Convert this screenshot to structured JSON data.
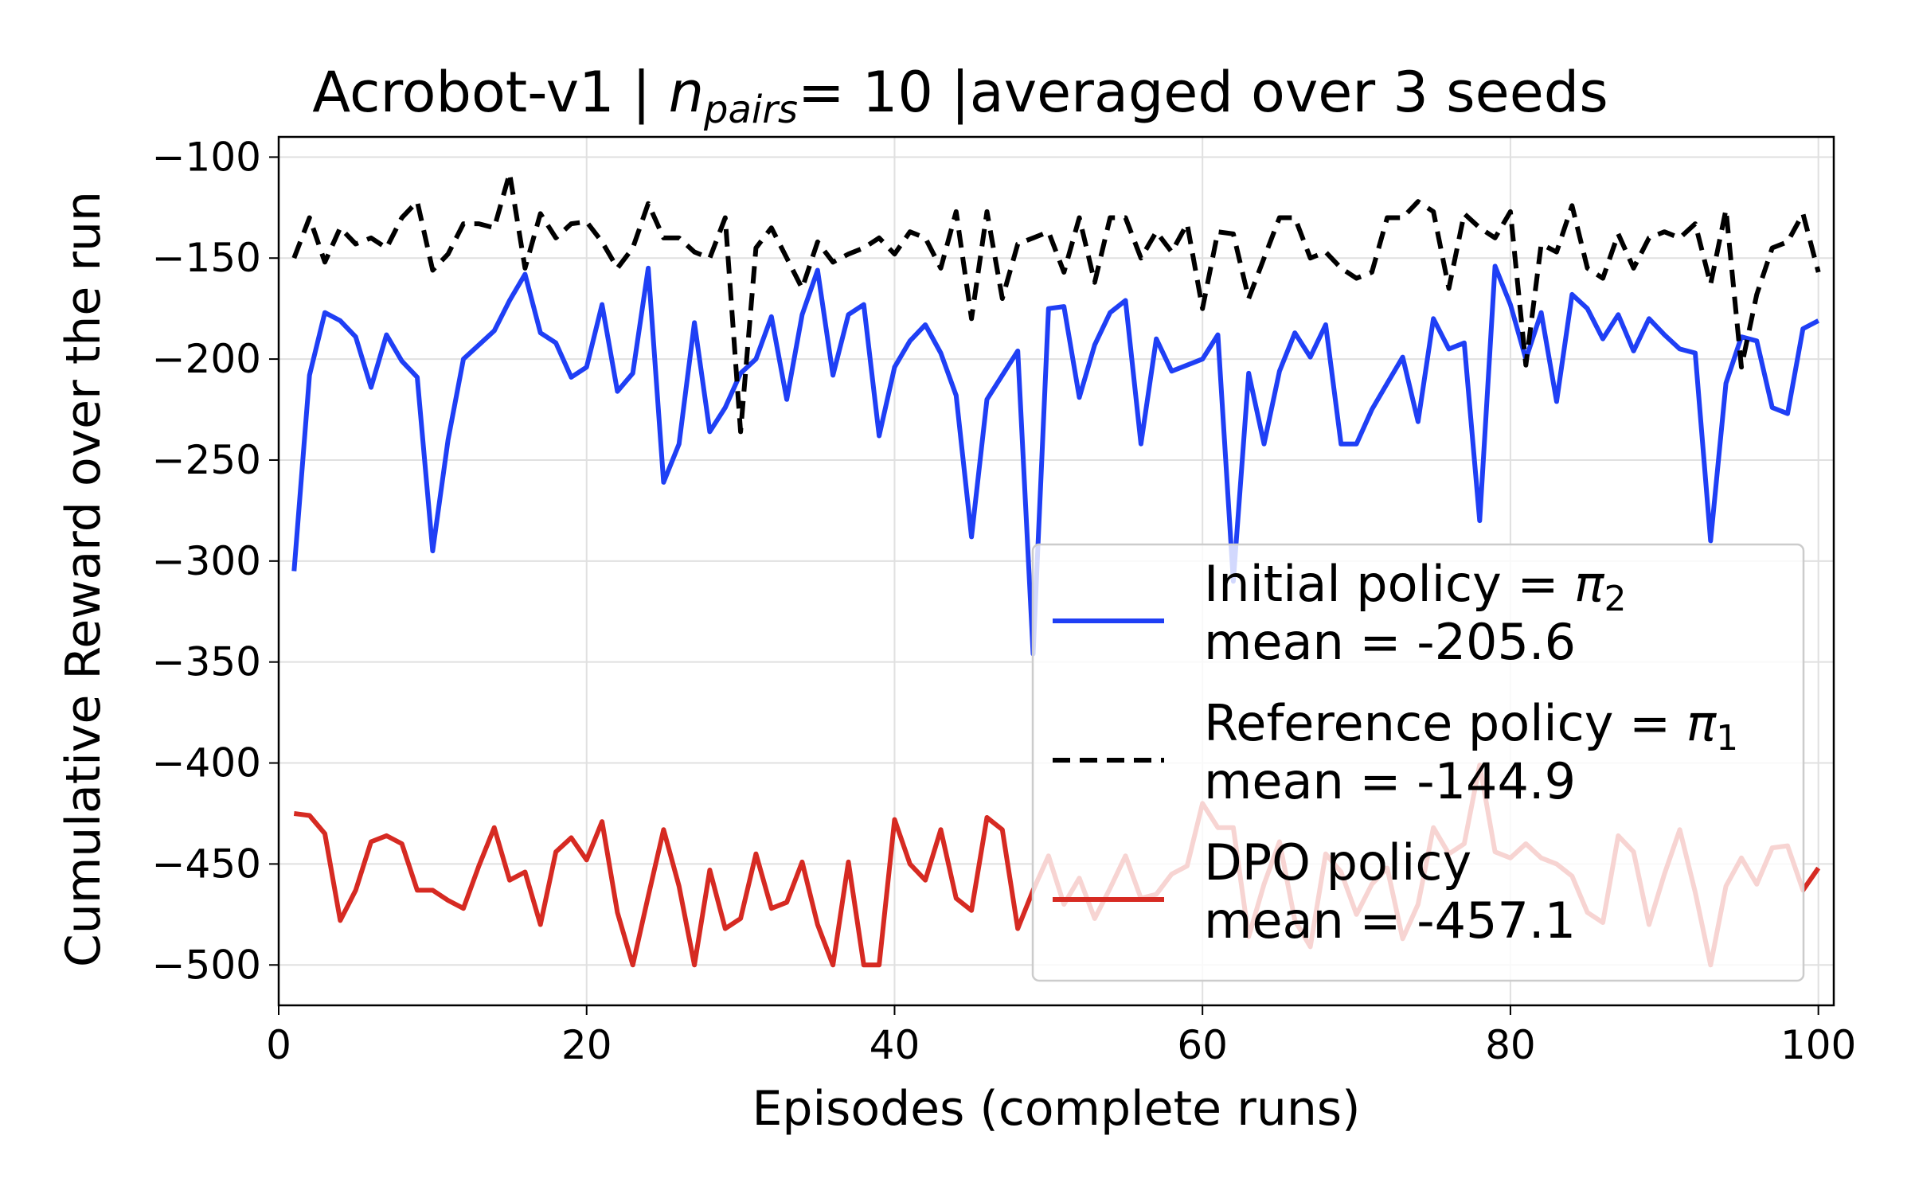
{
  "chart_data": {
    "type": "line",
    "title": {
      "prefix": "Acrobot-v1 | ",
      "var": "n",
      "var_sub": "pairs",
      "suffix": "= 10 |averaged over 3 seeds"
    },
    "xlabel": "Episodes (complete runs)",
    "ylabel": "Cumulative Reward over the run",
    "xlim": [
      0,
      101
    ],
    "ylim": [
      -520,
      -90
    ],
    "xticks": [
      0,
      20,
      40,
      60,
      80,
      100
    ],
    "yticks": [
      -100,
      -150,
      -200,
      -250,
      -300,
      -350,
      -400,
      -450,
      -500
    ],
    "xtick_labels": [
      "0",
      "20",
      "40",
      "60",
      "80",
      "100"
    ],
    "ytick_labels": [
      "−100",
      "−150",
      "−200",
      "−250",
      "−300",
      "−350",
      "−400",
      "−450",
      "−500"
    ],
    "grid": true,
    "legend_position": "lower-right",
    "x": [
      1,
      2,
      3,
      4,
      5,
      6,
      7,
      8,
      9,
      10,
      11,
      12,
      13,
      14,
      15,
      16,
      17,
      18,
      19,
      20,
      21,
      22,
      23,
      24,
      25,
      26,
      27,
      28,
      29,
      30,
      31,
      32,
      33,
      34,
      35,
      36,
      37,
      38,
      39,
      40,
      41,
      42,
      43,
      44,
      45,
      46,
      47,
      48,
      49,
      50,
      51,
      52,
      53,
      54,
      55,
      56,
      57,
      58,
      59,
      60,
      61,
      62,
      63,
      64,
      65,
      66,
      67,
      68,
      69,
      70,
      71,
      72,
      73,
      74,
      75,
      76,
      77,
      78,
      79,
      80,
      81,
      82,
      83,
      84,
      85,
      86,
      87,
      88,
      89,
      90,
      91,
      92,
      93,
      94,
      95,
      96,
      97,
      98,
      99,
      100
    ],
    "series": [
      {
        "key": "initial",
        "legend_line1": "Initial policy = ",
        "legend_symbol": "π",
        "legend_sub": "2",
        "legend_line2": " mean = -205.6",
        "color": "#1f3ff5",
        "dash": "",
        "values": [
          -305,
          -208,
          -177,
          -181,
          -189,
          -214,
          -188,
          -201,
          -209,
          -295,
          -240,
          -200,
          -193,
          -186,
          -171,
          -158,
          -187,
          -192,
          -209,
          -204,
          -173,
          -216,
          -207,
          -155,
          -261,
          -242,
          -182,
          -236,
          -224,
          -207,
          -200,
          -179,
          -220,
          -178,
          -156,
          -208,
          -178,
          -173,
          -238,
          -204,
          -191,
          -183,
          -197,
          -218,
          -288,
          -220,
          -208,
          -196,
          -346,
          -175,
          -174,
          -219,
          -193,
          -177,
          -171,
          -242,
          -190,
          -206,
          -203,
          -200,
          -188,
          -310,
          -207,
          -242,
          -206,
          -187,
          -199,
          -183,
          -242,
          -242,
          -225,
          -212,
          -199,
          -231,
          -180,
          -195,
          -192,
          -280,
          -154,
          -173,
          -200,
          -177,
          -221,
          -168,
          -175,
          -190,
          -178,
          -196,
          -180,
          -188,
          -195,
          -197,
          -290,
          -212,
          -189,
          -191,
          -224,
          -227,
          -185,
          -181
        ]
      },
      {
        "key": "reference",
        "legend_line1": "Reference policy = ",
        "legend_symbol": "π",
        "legend_sub": "1",
        "legend_line2": " mean = -144.9",
        "color": "#000000",
        "dash": "22,12",
        "values": [
          -150,
          -130,
          -152,
          -135,
          -143,
          -140,
          -145,
          -130,
          -122,
          -156,
          -148,
          -133,
          -133,
          -135,
          -108,
          -155,
          -128,
          -140,
          -133,
          -132,
          -142,
          -155,
          -145,
          -123,
          -140,
          -140,
          -147,
          -150,
          -130,
          -236,
          -145,
          -135,
          -150,
          -165,
          -142,
          -152,
          -148,
          -145,
          -140,
          -148,
          -137,
          -140,
          -155,
          -127,
          -180,
          -127,
          -170,
          -143,
          -140,
          -137,
          -157,
          -130,
          -162,
          -130,
          -130,
          -150,
          -137,
          -147,
          -133,
          -175,
          -137,
          -138,
          -170,
          -150,
          -130,
          -130,
          -150,
          -147,
          -155,
          -160,
          -157,
          -130,
          -130,
          -122,
          -127,
          -165,
          -128,
          -135,
          -140,
          -127,
          -203,
          -143,
          -147,
          -124,
          -155,
          -160,
          -138,
          -155,
          -140,
          -137,
          -140,
          -133,
          -163,
          -126,
          -204,
          -168,
          -145,
          -142,
          -128,
          -157
        ]
      },
      {
        "key": "dpo",
        "legend_line1": "DPO policy",
        "legend_symbol": "",
        "legend_sub": "",
        "legend_line2": " mean = -457.1",
        "color": "#d62a22",
        "dash": "",
        "values": [
          -425,
          -426,
          -435,
          -478,
          -463,
          -439,
          -436,
          -440,
          -463,
          -463,
          -468,
          -472,
          -451,
          -432,
          -458,
          -454,
          -480,
          -444,
          -437,
          -448,
          -429,
          -474,
          -500,
          -466,
          -433,
          -461,
          -500,
          -453,
          -482,
          -477,
          -445,
          -472,
          -469,
          -449,
          -480,
          -500,
          -449,
          -500,
          -500,
          -428,
          -450,
          -458,
          -433,
          -467,
          -473,
          -427,
          -433,
          -482,
          -463,
          -446,
          -470,
          -457,
          -477,
          -462,
          -446,
          -467,
          -465,
          -455,
          -451,
          -420,
          -432,
          -432,
          -486,
          -460,
          -439,
          -478,
          -491,
          -445,
          -454,
          -475,
          -460,
          -452,
          -487,
          -470,
          -432,
          -445,
          -440,
          -401,
          -444,
          -447,
          -440,
          -447,
          -450,
          -456,
          -474,
          -479,
          -436,
          -444,
          -480,
          -455,
          -433,
          -464,
          -500,
          -461,
          -447,
          -460,
          -442,
          -441,
          -463,
          -452
        ]
      }
    ]
  }
}
